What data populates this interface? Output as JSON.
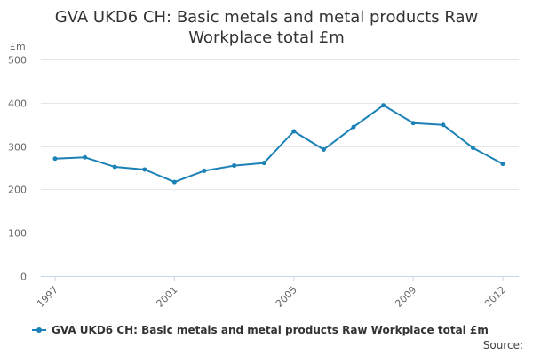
{
  "colors": {
    "series": "#1a81b6",
    "grid": "#e6e6e6",
    "axis": "#ccd6eb",
    "text": "#666666"
  },
  "chart_data": {
    "type": "line",
    "title_lines": [
      "GVA UKD6 CH: Basic metals and metal products Raw",
      "Workplace total £m"
    ],
    "ylabel": "£m",
    "xlabel": "",
    "x": [
      1997,
      1998,
      1999,
      2000,
      2001,
      2002,
      2003,
      2004,
      2005,
      2006,
      2007,
      2008,
      2009,
      2010,
      2011,
      2012
    ],
    "x_tick_labels": [
      1997,
      2001,
      2005,
      2009,
      2012
    ],
    "series": [
      {
        "name": "GVA UKD6 CH: Basic metals and metal products Raw Workplace total £m",
        "values": [
          271,
          274,
          252,
          246,
          217,
          243,
          255,
          261,
          334,
          292,
          344,
          394,
          353,
          349,
          296,
          259
        ]
      }
    ],
    "ylim": [
      0,
      500
    ],
    "y_ticks": [
      0,
      100,
      200,
      300,
      400,
      500
    ],
    "grid": true,
    "legend_position": "bottom-left"
  },
  "source_label": "Source:"
}
